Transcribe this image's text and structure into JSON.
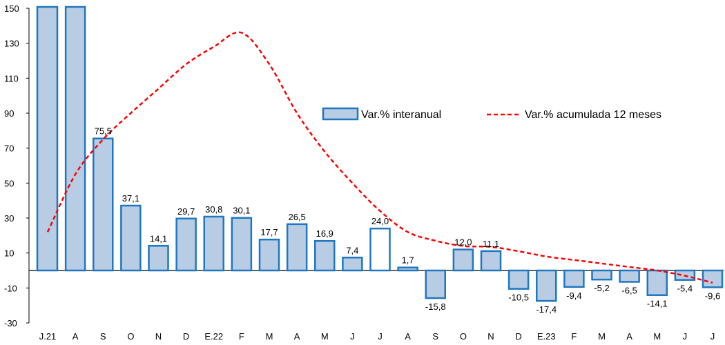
{
  "chart_data": {
    "type": "bar",
    "categories": [
      "J.21",
      "A",
      "S",
      "O",
      "N",
      "D",
      "E.22",
      "F",
      "M",
      "A",
      "M",
      "J",
      "J",
      "A",
      "S",
      "O",
      "N",
      "D",
      "E.23",
      "F",
      "M",
      "A",
      "M",
      "J",
      "J"
    ],
    "series": [
      {
        "name": "Var.% interanual",
        "type": "bar",
        "values": [
          null,
          null,
          75.5,
          37.1,
          14.1,
          29.7,
          30.8,
          30.1,
          17.7,
          26.5,
          16.9,
          7.4,
          24.0,
          1.7,
          -15.8,
          12.0,
          11.1,
          -10.5,
          -17.4,
          -9.4,
          -5.2,
          -6.5,
          -14.1,
          -5.4,
          -9.6
        ],
        "labels": [
          "",
          "",
          "75,5",
          "37,1",
          "14,1",
          "29,7",
          "30,8",
          "30,1",
          "17,7",
          "26,5",
          "16,9",
          "7,4",
          "24,0",
          "1,7",
          "-15,8",
          "12,0",
          "11,1",
          "-10,5",
          "-17,4",
          "-9,4",
          "-5,2",
          "-6,5",
          "-14,1",
          "-5,4",
          "-9,6"
        ],
        "color": "#b8cce4",
        "border_color": "#1f77c0"
      },
      {
        "name": "Var.% acumulada 12 meses",
        "type": "line",
        "style": "dashed",
        "color": "#ff0000",
        "values": [
          22,
          55,
          75,
          90,
          104,
          118,
          128,
          136,
          118,
          90,
          68,
          50,
          34,
          22,
          17,
          14,
          13.5,
          11,
          8,
          6,
          4,
          2,
          0,
          -3,
          -7
        ]
      }
    ],
    "clipped_top_bars": [
      0,
      1
    ],
    "open_bar_index": 12,
    "ylim": [
      -30,
      150
    ],
    "yticks": [
      "150",
      "130",
      "110",
      "90",
      "70",
      "50",
      "30",
      "10",
      "-10",
      "-30"
    ],
    "ytick_values": [
      150,
      130,
      110,
      90,
      70,
      50,
      30,
      10,
      -10,
      -30
    ],
    "baseline": 0,
    "legend_position": "upper-right-center",
    "grid": false
  }
}
